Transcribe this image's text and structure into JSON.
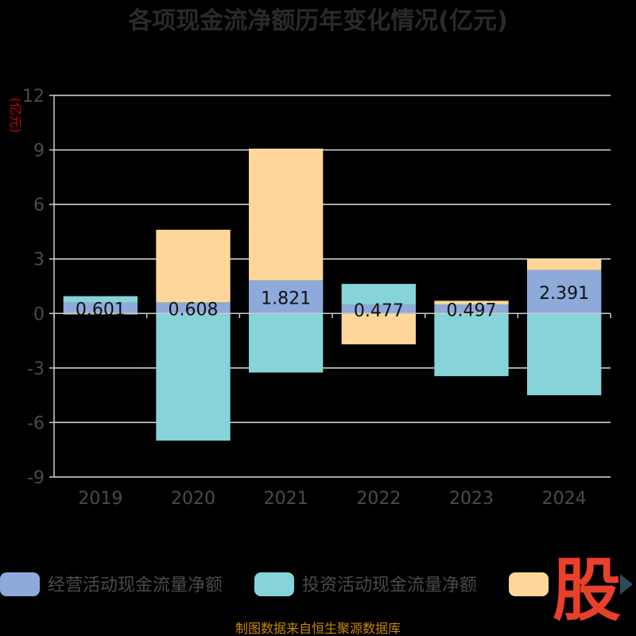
{
  "chart_data": {
    "type": "bar",
    "stacked": true,
    "title": "各项现金流净额历年变化情况(亿元)",
    "unit_label": "(亿元)",
    "categories": [
      "2019",
      "2020",
      "2021",
      "2022",
      "2023",
      "2024"
    ],
    "ylim": [
      -9,
      12
    ],
    "yticks": [
      -9,
      -6,
      -3,
      0,
      3,
      6,
      9,
      12
    ],
    "grid": true,
    "legend_position": "bottom",
    "series": [
      {
        "name": "经营活动现金流量净额",
        "color": "#8eaadb",
        "values": [
          0.601,
          0.608,
          1.821,
          0.477,
          0.497,
          2.391
        ],
        "labels": [
          "0.601",
          "0.608",
          "1.821",
          "0.477",
          "0.497",
          "2.391"
        ]
      },
      {
        "name": "投资活动现金流量净额",
        "color": "#86d4d8",
        "values": [
          0.35,
          -7.0,
          -3.25,
          1.15,
          -3.45,
          -4.5
        ]
      },
      {
        "name": "",
        "color": "#ffd79a",
        "values": [
          -0.05,
          4.0,
          7.25,
          -1.7,
          0.2,
          0.6
        ]
      }
    ]
  },
  "source": "制图数据来自恒生聚源数据库",
  "logo_char": "股"
}
